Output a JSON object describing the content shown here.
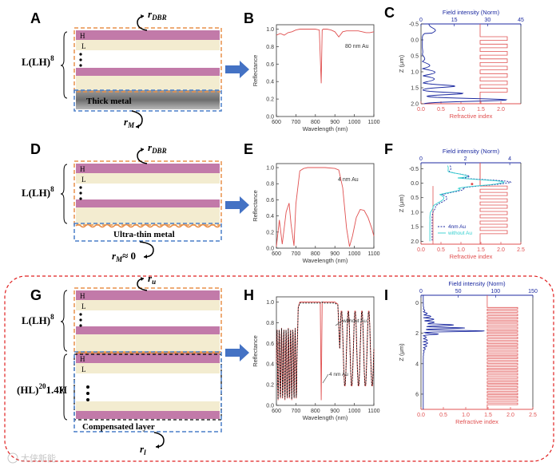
{
  "panel_letters": {
    "A": "A",
    "B": "B",
    "C": "C",
    "D": "D",
    "E": "E",
    "F": "F",
    "G": "G",
    "H": "H",
    "I": "I"
  },
  "stack": {
    "h_label": "H",
    "l_label": "L",
    "formula_main": "L(LH)",
    "formula_main_sup": "8",
    "formula_bottom": "(HL)",
    "formula_bottom_sup": "20",
    "formula_bottom_tail": "1.4H",
    "thick_metal": "Thick metal",
    "ultra_thin_metal": "Ultra-thin metal",
    "compensated_layer": "Compensated layer",
    "r_dbr": "r",
    "r_dbr_sub": "DBR",
    "r_m": "r",
    "r_m_sub": "M",
    "approx_zero": "≈ 0",
    "r_u": "r",
    "r_u_sub": "u",
    "r_l": "r",
    "r_l_sub": "l"
  },
  "colors": {
    "h_layer": "#c27aa9",
    "l_layer": "#f3ecd0",
    "orange_dash": "#e8904a",
    "blue_dash": "#4a7fc8",
    "arrow": "#4472c4",
    "red_curve": "#e05050",
    "blue_curve": "#1c2aa0",
    "red_dashed_border": "#e02020"
  },
  "chart_data": [
    {
      "panel": "B",
      "type": "line",
      "xlabel": "Wavelength (nm)",
      "ylabel": "Reflectance",
      "xlim": [
        600,
        1100
      ],
      "ylim": [
        0,
        1.05
      ],
      "xticks": [
        600,
        700,
        800,
        900,
        1000,
        1100
      ],
      "yticks": [
        0.0,
        0.2,
        0.4,
        0.6,
        0.8,
        1.0
      ],
      "annotation": "80 nm Au",
      "series": [
        {
          "name": "reflectance",
          "x": [
            600,
            620,
            640,
            660,
            680,
            700,
            720,
            740,
            760,
            780,
            800,
            820,
            830,
            835,
            840,
            860,
            880,
            900,
            920,
            940,
            960,
            980,
            1000,
            1020,
            1040,
            1060,
            1080,
            1100
          ],
          "y": [
            0.93,
            0.95,
            0.93,
            0.96,
            0.97,
            0.99,
            1.0,
            1.0,
            1.0,
            1.0,
            1.0,
            0.99,
            0.38,
            0.99,
            1.0,
            1.0,
            0.99,
            0.97,
            0.91,
            0.97,
            0.98,
            0.98,
            0.98,
            0.98,
            0.97,
            0.96,
            0.96,
            0.97
          ]
        }
      ]
    },
    {
      "panel": "C",
      "type": "line",
      "xlabel": "Refractive index",
      "ylabel": "Z (μm)",
      "top_xlabel": "Field intensity (Norm)",
      "xlim": [
        0,
        2.5
      ],
      "ylim": [
        -0.5,
        2.0
      ],
      "top_xlim": [
        0,
        45
      ],
      "xticks": [
        0.0,
        0.5,
        1.0,
        1.5,
        2.0
      ],
      "top_xticks": [
        0,
        15,
        30,
        45
      ],
      "yticks": [
        -0.5,
        0.0,
        0.5,
        1.0,
        1.5,
        2.0
      ]
    },
    {
      "panel": "E",
      "type": "line",
      "xlabel": "Wavelength (nm)",
      "ylabel": "Reflectance",
      "xlim": [
        600,
        1100
      ],
      "ylim": [
        0,
        1.05
      ],
      "xticks": [
        600,
        700,
        800,
        900,
        1000,
        1100
      ],
      "yticks": [
        0.0,
        0.2,
        0.4,
        0.6,
        0.8,
        1.0
      ],
      "annotation": "4 nm Au",
      "series": [
        {
          "name": "reflectance",
          "x": [
            600,
            615,
            630,
            650,
            665,
            675,
            690,
            700,
            720,
            740,
            760,
            800,
            850,
            900,
            920,
            940,
            960,
            975,
            990,
            1010,
            1030,
            1050,
            1070,
            1090,
            1100
          ],
          "y": [
            0.02,
            0.35,
            0.05,
            0.45,
            0.56,
            0.3,
            0.03,
            0.55,
            0.96,
            0.99,
            1.0,
            1.0,
            1.0,
            0.99,
            0.97,
            0.75,
            0.25,
            0.02,
            0.15,
            0.38,
            0.48,
            0.47,
            0.38,
            0.24,
            0.15
          ]
        }
      ]
    },
    {
      "panel": "F",
      "type": "line",
      "xlabel": "Refractive index",
      "ylabel": "Z (μm)",
      "top_xlabel": "Field intensity (Norm)",
      "xlim": [
        0,
        2.5
      ],
      "ylim": [
        -0.7,
        2.1
      ],
      "top_xlim": [
        0,
        4.5
      ],
      "xticks": [
        0.0,
        0.5,
        1.0,
        1.5,
        2.0,
        2.5
      ],
      "top_xticks": [
        0,
        2,
        4
      ],
      "yticks": [
        -0.5,
        0.0,
        0.5,
        1.0,
        1.5,
        2.0
      ],
      "legend": [
        "4nm Au",
        "without Au"
      ]
    },
    {
      "panel": "H",
      "type": "line",
      "xlabel": "Wavelength (nm)",
      "ylabel": "Reflectance",
      "xlim": [
        600,
        1100
      ],
      "ylim": [
        0,
        1.05
      ],
      "xticks": [
        600,
        700,
        800,
        900,
        1000,
        1100
      ],
      "yticks": [
        0.0,
        0.2,
        0.4,
        0.6,
        0.8,
        1.0
      ],
      "annotations": [
        "without Au",
        "4 nm Au"
      ]
    },
    {
      "panel": "I",
      "type": "line",
      "xlabel": "Refractive index",
      "ylabel": "Z (μm)",
      "top_xlabel": "Field intensity (Norm)",
      "xlim": [
        0,
        2.5
      ],
      "ylim": [
        -0.5,
        7.0
      ],
      "top_xlim": [
        0,
        150
      ],
      "xticks": [
        0.0,
        0.5,
        1.0,
        1.5,
        2.0,
        2.5
      ],
      "top_xticks": [
        0,
        50,
        100,
        150
      ],
      "yticks": [
        0,
        2,
        4,
        6
      ]
    }
  ],
  "watermark": "大侠新能"
}
